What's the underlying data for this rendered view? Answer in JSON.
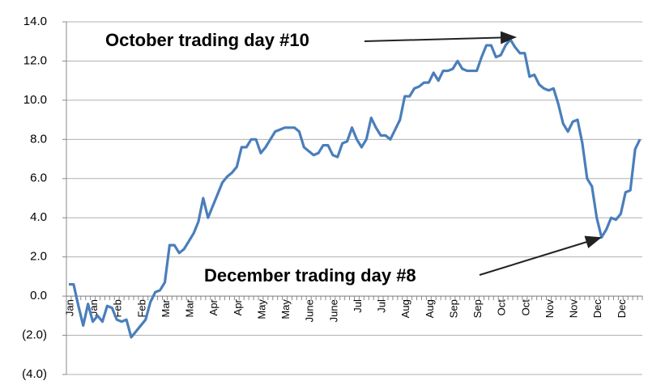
{
  "chart_data": {
    "type": "line",
    "annotations": [
      "October trading day #10",
      "December trading day #8"
    ],
    "annotation_color": "#c00000",
    "categories": [
      "Jan",
      null,
      null,
      null,
      null,
      "Jan",
      null,
      null,
      null,
      null,
      "Feb",
      null,
      null,
      null,
      null,
      "Feb",
      null,
      null,
      null,
      null,
      "Mar",
      null,
      null,
      null,
      null,
      "Mar",
      null,
      null,
      null,
      null,
      "Apr",
      null,
      null,
      null,
      null,
      "Apr",
      null,
      null,
      null,
      null,
      "May",
      null,
      null,
      null,
      null,
      "May",
      null,
      null,
      null,
      null,
      "June",
      null,
      null,
      null,
      null,
      "June",
      null,
      null,
      null,
      null,
      "Jul",
      null,
      null,
      null,
      null,
      "Jul",
      null,
      null,
      null,
      null,
      "Aug",
      null,
      null,
      null,
      null,
      "Aug",
      null,
      null,
      null,
      null,
      "Sep",
      null,
      null,
      null,
      null,
      "Sep",
      null,
      null,
      null,
      null,
      "Oct",
      null,
      null,
      null,
      null,
      "Oct",
      null,
      null,
      null,
      null,
      "Nov",
      null,
      null,
      null,
      null,
      "Nov",
      null,
      null,
      null,
      null,
      "Dec",
      null,
      null,
      null,
      null,
      "Dec",
      null,
      null,
      null,
      null
    ],
    "values": [
      0.6,
      0.6,
      -0.5,
      -1.5,
      -0.4,
      -1.3,
      -1.0,
      -1.3,
      -0.5,
      -0.6,
      -1.2,
      -1.3,
      -1.2,
      -2.1,
      -1.8,
      -1.5,
      -1.2,
      -0.3,
      0.2,
      0.3,
      0.7,
      2.6,
      2.6,
      2.2,
      2.4,
      2.8,
      3.2,
      3.8,
      5.0,
      4.0,
      4.6,
      5.2,
      5.8,
      6.1,
      6.3,
      6.6,
      7.6,
      7.6,
      8.0,
      8.0,
      7.3,
      7.6,
      8.0,
      8.4,
      8.5,
      8.6,
      8.6,
      8.6,
      8.4,
      7.6,
      7.4,
      7.2,
      7.3,
      7.7,
      7.7,
      7.2,
      7.1,
      7.8,
      7.9,
      8.6,
      8.0,
      7.6,
      8.0,
      9.1,
      8.6,
      8.2,
      8.2,
      8.0,
      8.5,
      9.0,
      10.2,
      10.2,
      10.6,
      10.7,
      10.9,
      10.9,
      11.4,
      11.0,
      11.5,
      11.5,
      11.6,
      12.0,
      11.6,
      11.5,
      11.5,
      11.5,
      12.2,
      12.8,
      12.8,
      12.2,
      12.3,
      12.8,
      13.1,
      12.7,
      12.4,
      12.4,
      11.2,
      11.3,
      10.8,
      10.6,
      10.5,
      10.6,
      9.8,
      8.8,
      8.4,
      8.9,
      9.0,
      7.8,
      6.0,
      5.6,
      4.0,
      3.0,
      3.4,
      4.0,
      3.9,
      4.2,
      5.3,
      5.4,
      7.5,
      8.0
    ],
    "color": "#4a7ebb",
    "ylim": [
      -4,
      14
    ],
    "yticks": [
      {
        "value": -4,
        "label": "(4.0)"
      },
      {
        "value": -2,
        "label": "(2.0)"
      },
      {
        "value": 0,
        "label": "0.0"
      },
      {
        "value": 2,
        "label": "2.0"
      },
      {
        "value": 4,
        "label": "4.0"
      },
      {
        "value": 6,
        "label": "6.0"
      },
      {
        "value": 8,
        "label": "8.0"
      },
      {
        "value": 10,
        "label": "10.0"
      },
      {
        "value": 12,
        "label": "12.0"
      },
      {
        "value": 14,
        "label": "14.0"
      }
    ],
    "negative_tick_color": "#c00000",
    "grid": true
  }
}
